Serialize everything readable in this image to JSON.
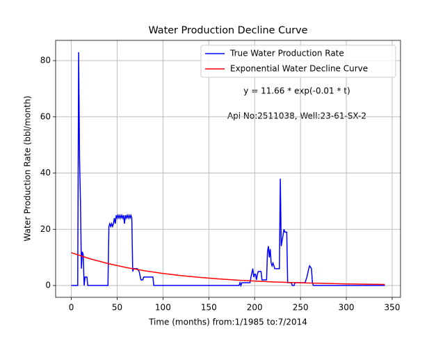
{
  "chart_data": {
    "type": "line",
    "title": "Water Production Decline Curve",
    "xlabel": "Time (months) from:1/1985 to:7/2014",
    "ylabel": "Water Production Rate (bbl/month)",
    "annotations": [
      "y = 11.66 * exp(-0.01 * t)",
      "Api No:2511038, Well:23-61-SX-2"
    ],
    "xlim": [
      -17.1,
      359.1
    ],
    "ylim": [
      -4.2,
      87.2
    ],
    "xticks": [
      0,
      50,
      100,
      150,
      200,
      250,
      300,
      350
    ],
    "yticks": [
      0,
      20,
      40,
      60,
      80
    ],
    "grid": true,
    "legend": "upper right",
    "series": [
      {
        "name": "True Water Production Rate",
        "color": "#0000ff",
        "x": [
          0,
          7,
          8,
          9,
          10,
          11,
          12,
          13,
          14,
          15,
          17,
          18,
          40,
          41,
          42,
          43,
          44,
          45,
          46,
          47,
          48,
          49,
          50,
          51,
          52,
          53,
          54,
          55,
          56,
          57,
          58,
          59,
          60,
          61,
          62,
          63,
          64,
          65,
          66,
          67,
          68,
          72,
          74,
          76,
          78,
          79,
          89,
          90,
          183,
          184,
          185,
          186,
          195,
          196,
          198,
          199,
          200,
          201,
          202,
          203,
          204,
          207,
          208,
          213,
          214,
          215,
          216,
          217,
          218,
          219,
          220,
          221,
          222,
          227,
          228,
          229,
          230,
          231,
          232,
          233,
          235,
          236,
          238,
          240,
          241,
          243,
          244,
          255,
          257,
          259,
          260,
          262,
          263,
          264,
          342
        ],
        "values": [
          0,
          0,
          83,
          45,
          30,
          6,
          12,
          11,
          0,
          3,
          3,
          0,
          0,
          21,
          22,
          21,
          22,
          21,
          22,
          24,
          22,
          25,
          24,
          25,
          24,
          25,
          24,
          25,
          24,
          25,
          22,
          25,
          24,
          25,
          24,
          25,
          24,
          25,
          24,
          5,
          6,
          6,
          5,
          2,
          2,
          3,
          3,
          0,
          0,
          1,
          0,
          1,
          1,
          3,
          6,
          3,
          4,
          4,
          2,
          4,
          5,
          5,
          2,
          2,
          12,
          14,
          10,
          13,
          8,
          7,
          8,
          7,
          6,
          6,
          38,
          14,
          16,
          18,
          20,
          19,
          19,
          1,
          1,
          1,
          0,
          0,
          1,
          1,
          3,
          6,
          7,
          6,
          1,
          0,
          0
        ]
      },
      {
        "name": "Exponential Water Decline Curve",
        "color": "#ff0000",
        "x": [
          0,
          20,
          40,
          60,
          80,
          100,
          120,
          140,
          160,
          180,
          200,
          220,
          240,
          260,
          280,
          300,
          320,
          342
        ],
        "values": [
          11.66,
          9.55,
          7.82,
          6.4,
          5.24,
          4.29,
          3.51,
          2.88,
          2.35,
          1.93,
          1.58,
          1.29,
          1.06,
          0.87,
          0.71,
          0.58,
          0.48,
          0.38
        ]
      }
    ]
  }
}
